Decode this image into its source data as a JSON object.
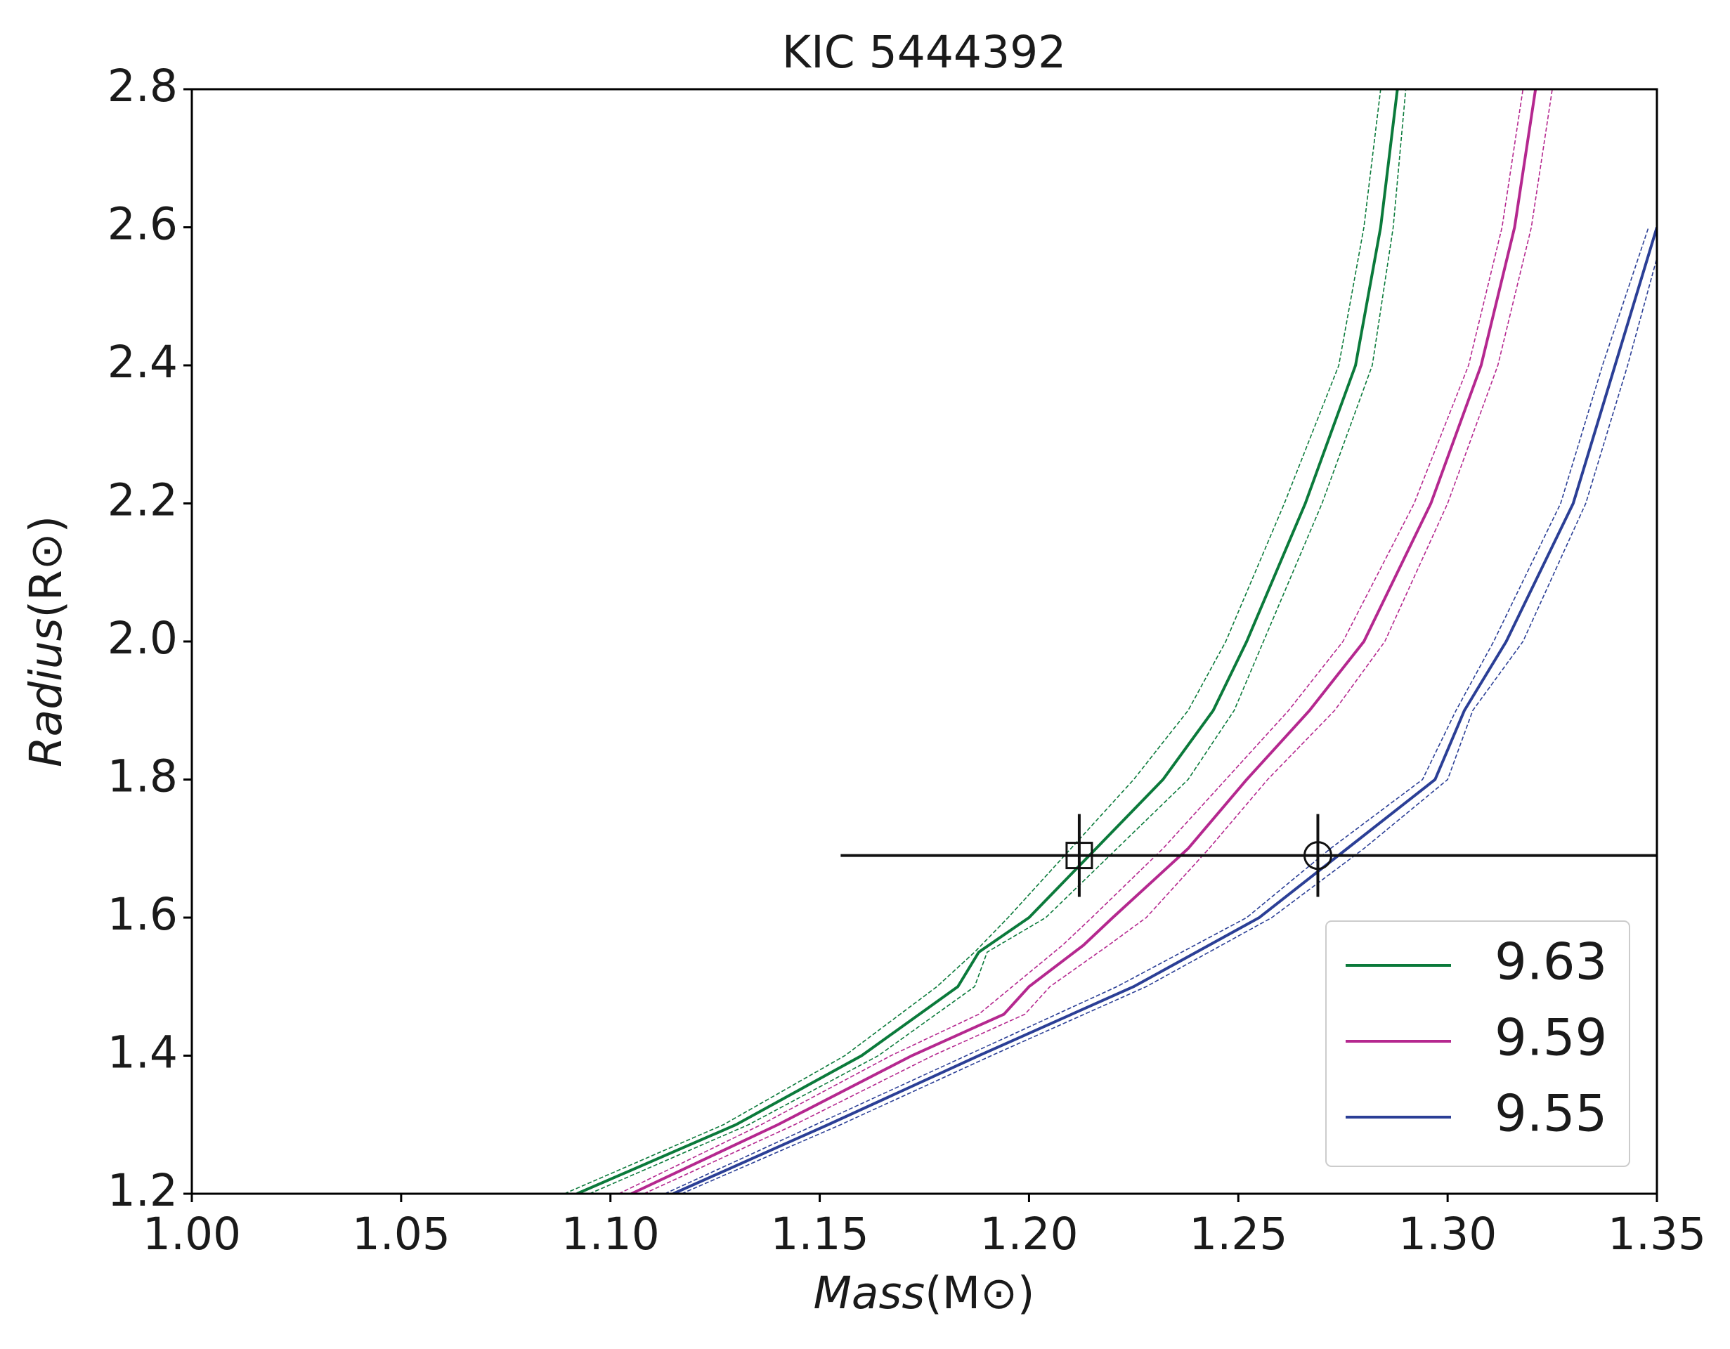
{
  "chart_data": {
    "type": "line",
    "title": "KIC 5444392",
    "xlabel": [
      "Mass",
      "(M⊙)"
    ],
    "ylabel": [
      "Radius",
      "(R⊙)"
    ],
    "xlim": [
      1.0,
      1.35
    ],
    "xticks": [
      {
        "value": 1.0,
        "label": "1.00"
      },
      1.05,
      {
        "value": 1.1,
        "label": "1.10"
      },
      1.15,
      {
        "value": 1.2,
        "label": "1.20"
      },
      1.25,
      {
        "value": 1.3,
        "label": "1.30"
      },
      1.35
    ],
    "ylim": [
      1.2,
      2.8
    ],
    "yticks": [
      1.2,
      1.4,
      1.6,
      1.8,
      {
        "value": 2.0,
        "label": "2.0"
      },
      2.2,
      2.4,
      2.6,
      2.8
    ],
    "legend": "lower right",
    "series": [
      {
        "name": "9.63",
        "color": "#0b7a3b",
        "values": [
          1.2,
          1.3,
          1.4,
          1.5,
          1.55,
          1.6,
          1.7,
          1.8,
          1.9,
          2.0,
          2.2,
          2.4,
          2.6,
          2.8
        ],
        "x": [
          1.092,
          1.13,
          1.16,
          1.183,
          1.188,
          1.2,
          1.216,
          1.232,
          1.244,
          1.252,
          1.266,
          1.278,
          1.284,
          1.288
        ],
        "x_low": [
          1.089,
          1.127,
          1.156,
          1.178,
          1.187,
          1.195,
          1.21,
          1.225,
          1.238,
          1.247,
          1.261,
          1.274,
          1.28,
          1.284
        ],
        "x_high": [
          1.095,
          1.133,
          1.164,
          1.187,
          1.19,
          1.204,
          1.221,
          1.238,
          1.249,
          1.256,
          1.27,
          1.282,
          1.287,
          1.29
        ]
      },
      {
        "name": "9.59",
        "color": "#b5288f",
        "values": [
          1.2,
          1.3,
          1.4,
          1.46,
          1.5,
          1.56,
          1.6,
          1.7,
          1.8,
          1.9,
          2.0,
          2.2,
          2.4,
          2.6,
          2.8
        ],
        "x": [
          1.105,
          1.14,
          1.172,
          1.194,
          1.2,
          1.213,
          1.22,
          1.238,
          1.252,
          1.267,
          1.28,
          1.296,
          1.308,
          1.316,
          1.321
        ],
        "x_low": [
          1.102,
          1.136,
          1.167,
          1.188,
          1.196,
          1.208,
          1.215,
          1.232,
          1.247,
          1.262,
          1.275,
          1.292,
          1.305,
          1.313,
          1.318
        ],
        "x_high": [
          1.108,
          1.144,
          1.177,
          1.199,
          1.205,
          1.219,
          1.228,
          1.243,
          1.257,
          1.273,
          1.285,
          1.3,
          1.312,
          1.32,
          1.325
        ]
      },
      {
        "name": "9.55",
        "color": "#2b3f96",
        "values": [
          1.2,
          1.3,
          1.4,
          1.5,
          1.6,
          1.7,
          1.8,
          1.9,
          2.0,
          2.2,
          2.4,
          2.6
        ],
        "x": [
          1.115,
          1.152,
          1.188,
          1.225,
          1.255,
          1.276,
          1.297,
          1.304,
          1.314,
          1.33,
          1.34,
          1.35
        ],
        "x_low": [
          1.113,
          1.149,
          1.185,
          1.221,
          1.252,
          1.272,
          1.294,
          1.302,
          1.311,
          1.327,
          1.337,
          1.348
        ],
        "x_high": [
          1.117,
          1.155,
          1.191,
          1.228,
          1.258,
          1.28,
          1.3,
          1.306,
          1.318,
          1.333,
          1.343,
          1.352
        ]
      }
    ],
    "points": [
      {
        "marker": "square",
        "x": 1.212,
        "y": 1.69,
        "y_err": 0.06
      },
      {
        "marker": "circle",
        "x": 1.269,
        "y": 1.69,
        "y_err": 0.06,
        "x_err": 0.114
      }
    ]
  }
}
